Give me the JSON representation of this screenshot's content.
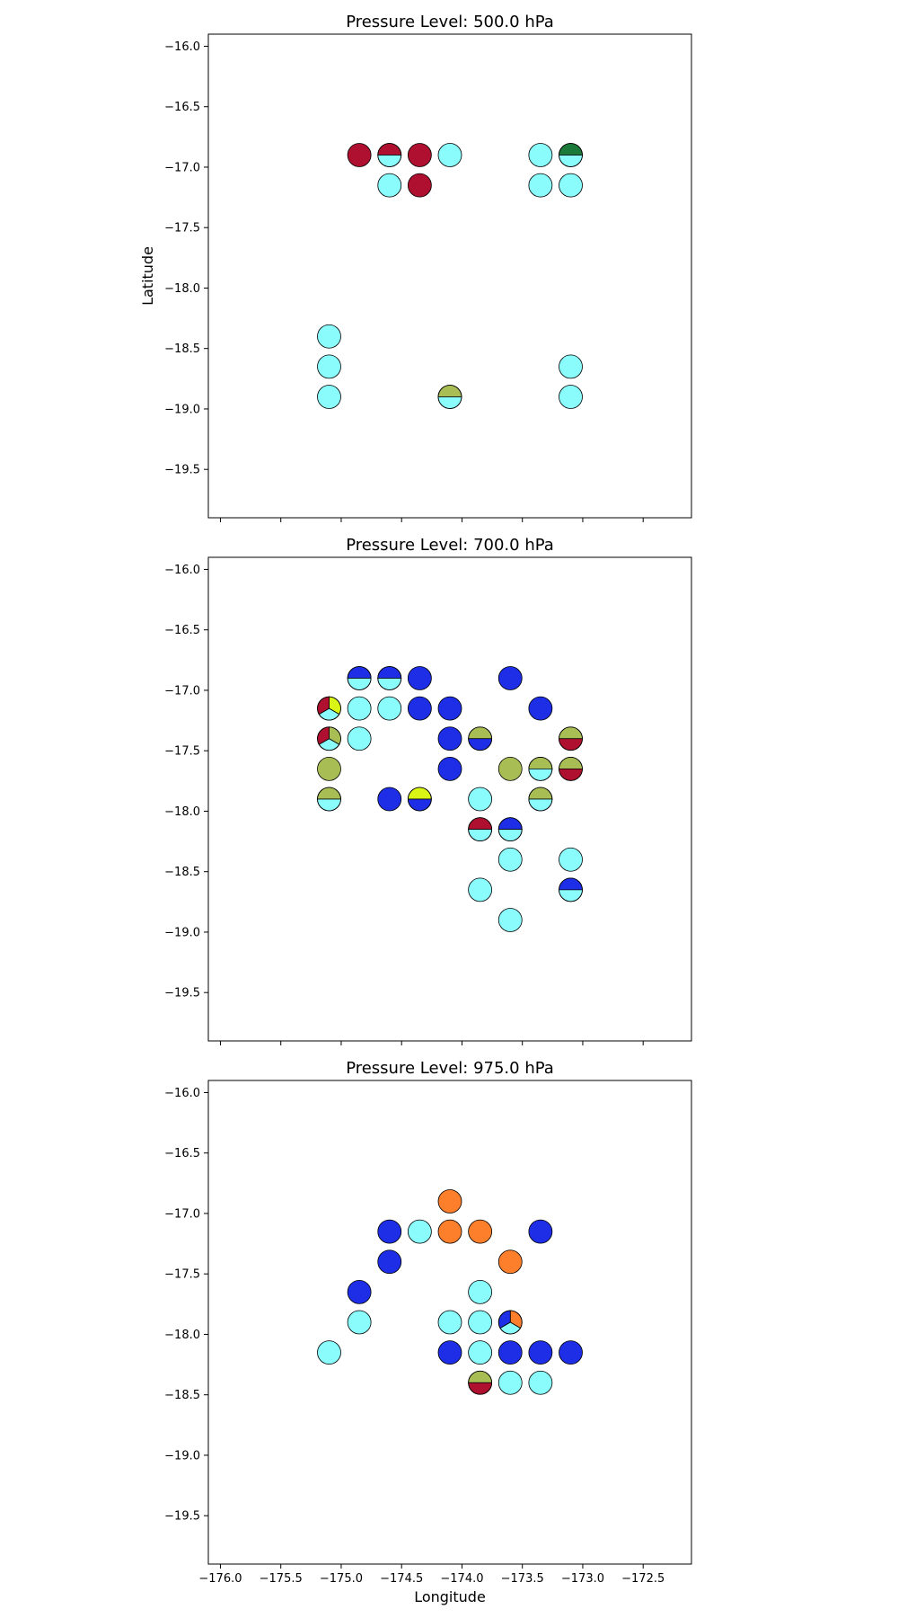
{
  "figure": {
    "ylabel": "Latitude",
    "xlabel": "Longitude"
  },
  "colors": {
    "cyan": "#8afcfc",
    "blue": "#1e2ee6",
    "crimson": "#b0102f",
    "olive": "#a8be55",
    "green": "#1b7a3a",
    "lime": "#d8f515",
    "orange": "#fd7f2b",
    "frame": "#000000",
    "background": "#ffffff"
  },
  "chart_data": [
    {
      "type": "scatter",
      "title": "Pressure Level: 500.0 hPa",
      "xlim": [
        -176.1,
        -172.1
      ],
      "ylim": [
        -19.9,
        -15.9
      ],
      "x_ticks": [
        -176.0,
        -175.5,
        -175.0,
        -174.5,
        -174.0,
        -173.5,
        -173.0,
        -172.5
      ],
      "y_ticks": [
        -16.0,
        -16.5,
        -17.0,
        -17.5,
        -18.0,
        -18.5,
        -19.0,
        -19.5
      ],
      "x_tick_labels": [],
      "y_tick_labels": [
        "−16.0",
        "−16.5",
        "−17.0",
        "−17.5",
        "−18.0",
        "−18.5",
        "−19.0",
        "−19.5"
      ],
      "ylabel": "Latitude",
      "xlabel": "",
      "grid": false,
      "points": [
        {
          "lon": -174.85,
          "lat": -16.9,
          "colors": [
            "crimson"
          ]
        },
        {
          "lon": -174.6,
          "lat": -16.9,
          "colors": [
            "crimson",
            "cyan"
          ]
        },
        {
          "lon": -174.35,
          "lat": -16.9,
          "colors": [
            "crimson"
          ]
        },
        {
          "lon": -174.1,
          "lat": -16.9,
          "colors": [
            "cyan"
          ]
        },
        {
          "lon": -173.35,
          "lat": -16.9,
          "colors": [
            "cyan"
          ]
        },
        {
          "lon": -173.1,
          "lat": -16.9,
          "colors": [
            "green",
            "cyan"
          ]
        },
        {
          "lon": -174.6,
          "lat": -17.15,
          "colors": [
            "cyan"
          ]
        },
        {
          "lon": -174.35,
          "lat": -17.15,
          "colors": [
            "crimson"
          ]
        },
        {
          "lon": -173.35,
          "lat": -17.15,
          "colors": [
            "cyan"
          ]
        },
        {
          "lon": -173.1,
          "lat": -17.15,
          "colors": [
            "cyan"
          ]
        },
        {
          "lon": -175.1,
          "lat": -18.4,
          "colors": [
            "cyan"
          ]
        },
        {
          "lon": -175.1,
          "lat": -18.65,
          "colors": [
            "cyan"
          ]
        },
        {
          "lon": -173.1,
          "lat": -18.65,
          "colors": [
            "cyan"
          ]
        },
        {
          "lon": -175.1,
          "lat": -18.9,
          "colors": [
            "cyan"
          ]
        },
        {
          "lon": -174.1,
          "lat": -18.9,
          "colors": [
            "olive",
            "cyan"
          ]
        },
        {
          "lon": -173.1,
          "lat": -18.9,
          "colors": [
            "cyan"
          ]
        }
      ]
    },
    {
      "type": "scatter",
      "title": "Pressure Level: 700.0 hPa",
      "xlim": [
        -176.1,
        -172.1
      ],
      "ylim": [
        -19.9,
        -15.9
      ],
      "x_ticks": [
        -176.0,
        -175.5,
        -175.0,
        -174.5,
        -174.0,
        -173.5,
        -173.0,
        -172.5
      ],
      "y_ticks": [
        -16.0,
        -16.5,
        -17.0,
        -17.5,
        -18.0,
        -18.5,
        -19.0,
        -19.5
      ],
      "x_tick_labels": [],
      "y_tick_labels": [
        "−16.0",
        "−16.5",
        "−17.0",
        "−17.5",
        "−18.0",
        "−18.5",
        "−19.0",
        "−19.5"
      ],
      "ylabel": "",
      "xlabel": "",
      "grid": false,
      "points": [
        {
          "lon": -174.85,
          "lat": -16.9,
          "colors": [
            "blue",
            "cyan"
          ]
        },
        {
          "lon": -174.6,
          "lat": -16.9,
          "colors": [
            "blue",
            "cyan"
          ]
        },
        {
          "lon": -174.35,
          "lat": -16.9,
          "colors": [
            "blue"
          ]
        },
        {
          "lon": -173.6,
          "lat": -16.9,
          "colors": [
            "blue"
          ]
        },
        {
          "lon": -175.1,
          "lat": -17.15,
          "colors": [
            "lime",
            "cyan",
            "crimson"
          ]
        },
        {
          "lon": -174.85,
          "lat": -17.15,
          "colors": [
            "cyan"
          ]
        },
        {
          "lon": -174.6,
          "lat": -17.15,
          "colors": [
            "cyan"
          ]
        },
        {
          "lon": -174.35,
          "lat": -17.15,
          "colors": [
            "blue"
          ]
        },
        {
          "lon": -174.1,
          "lat": -17.15,
          "colors": [
            "blue"
          ]
        },
        {
          "lon": -173.35,
          "lat": -17.15,
          "colors": [
            "blue"
          ]
        },
        {
          "lon": -175.1,
          "lat": -17.4,
          "colors": [
            "olive",
            "cyan",
            "crimson"
          ]
        },
        {
          "lon": -174.85,
          "lat": -17.4,
          "colors": [
            "cyan"
          ]
        },
        {
          "lon": -174.1,
          "lat": -17.4,
          "colors": [
            "blue"
          ]
        },
        {
          "lon": -173.85,
          "lat": -17.4,
          "colors": [
            "olive",
            "blue"
          ]
        },
        {
          "lon": -173.1,
          "lat": -17.4,
          "colors": [
            "olive",
            "crimson"
          ]
        },
        {
          "lon": -175.1,
          "lat": -17.65,
          "colors": [
            "olive"
          ]
        },
        {
          "lon": -174.1,
          "lat": -17.65,
          "colors": [
            "blue"
          ]
        },
        {
          "lon": -173.6,
          "lat": -17.65,
          "colors": [
            "olive"
          ]
        },
        {
          "lon": -173.35,
          "lat": -17.65,
          "colors": [
            "olive",
            "cyan"
          ]
        },
        {
          "lon": -173.1,
          "lat": -17.65,
          "colors": [
            "olive",
            "crimson"
          ]
        },
        {
          "lon": -175.1,
          "lat": -17.9,
          "colors": [
            "olive",
            "cyan"
          ]
        },
        {
          "lon": -174.6,
          "lat": -17.9,
          "colors": [
            "blue"
          ]
        },
        {
          "lon": -174.35,
          "lat": -17.9,
          "colors": [
            "lime",
            "blue"
          ]
        },
        {
          "lon": -173.85,
          "lat": -17.9,
          "colors": [
            "cyan"
          ]
        },
        {
          "lon": -173.35,
          "lat": -17.9,
          "colors": [
            "olive",
            "cyan"
          ]
        },
        {
          "lon": -173.85,
          "lat": -18.15,
          "colors": [
            "crimson",
            "cyan"
          ]
        },
        {
          "lon": -173.6,
          "lat": -18.15,
          "colors": [
            "blue",
            "cyan"
          ]
        },
        {
          "lon": -173.6,
          "lat": -18.4,
          "colors": [
            "cyan"
          ]
        },
        {
          "lon": -173.1,
          "lat": -18.4,
          "colors": [
            "cyan"
          ]
        },
        {
          "lon": -173.85,
          "lat": -18.65,
          "colors": [
            "cyan"
          ]
        },
        {
          "lon": -173.1,
          "lat": -18.65,
          "colors": [
            "blue",
            "cyan"
          ]
        },
        {
          "lon": -173.6,
          "lat": -18.9,
          "colors": [
            "cyan"
          ]
        }
      ]
    },
    {
      "type": "scatter",
      "title": "Pressure Level: 975.0 hPa",
      "xlim": [
        -176.1,
        -172.1
      ],
      "ylim": [
        -19.9,
        -15.9
      ],
      "x_ticks": [
        -176.0,
        -175.5,
        -175.0,
        -174.5,
        -174.0,
        -173.5,
        -173.0,
        -172.5
      ],
      "y_ticks": [
        -16.0,
        -16.5,
        -17.0,
        -17.5,
        -18.0,
        -18.5,
        -19.0,
        -19.5
      ],
      "x_tick_labels": [
        "−176.0",
        "−175.5",
        "−175.0",
        "−174.5",
        "−174.0",
        "−173.5",
        "−173.0",
        "−172.5"
      ],
      "y_tick_labels": [
        "−16.0",
        "−16.5",
        "−17.0",
        "−17.5",
        "−18.0",
        "−18.5",
        "−19.0",
        "−19.5"
      ],
      "ylabel": "",
      "xlabel": "Longitude",
      "grid": false,
      "points": [
        {
          "lon": -174.1,
          "lat": -16.9,
          "colors": [
            "orange"
          ]
        },
        {
          "lon": -174.6,
          "lat": -17.15,
          "colors": [
            "blue"
          ]
        },
        {
          "lon": -174.35,
          "lat": -17.15,
          "colors": [
            "cyan"
          ]
        },
        {
          "lon": -174.1,
          "lat": -17.15,
          "colors": [
            "orange"
          ]
        },
        {
          "lon": -173.85,
          "lat": -17.15,
          "colors": [
            "orange"
          ]
        },
        {
          "lon": -173.35,
          "lat": -17.15,
          "colors": [
            "blue"
          ]
        },
        {
          "lon": -174.6,
          "lat": -17.4,
          "colors": [
            "blue"
          ]
        },
        {
          "lon": -173.6,
          "lat": -17.4,
          "colors": [
            "orange"
          ]
        },
        {
          "lon": -174.85,
          "lat": -17.65,
          "colors": [
            "blue"
          ]
        },
        {
          "lon": -173.85,
          "lat": -17.65,
          "colors": [
            "cyan"
          ]
        },
        {
          "lon": -174.85,
          "lat": -17.9,
          "colors": [
            "cyan"
          ]
        },
        {
          "lon": -174.1,
          "lat": -17.9,
          "colors": [
            "cyan"
          ]
        },
        {
          "lon": -173.85,
          "lat": -17.9,
          "colors": [
            "cyan"
          ]
        },
        {
          "lon": -173.6,
          "lat": -17.9,
          "colors": [
            "orange",
            "cyan",
            "blue"
          ]
        },
        {
          "lon": -175.1,
          "lat": -18.15,
          "colors": [
            "cyan"
          ]
        },
        {
          "lon": -174.1,
          "lat": -18.15,
          "colors": [
            "blue"
          ]
        },
        {
          "lon": -173.85,
          "lat": -18.15,
          "colors": [
            "cyan"
          ]
        },
        {
          "lon": -173.6,
          "lat": -18.15,
          "colors": [
            "blue"
          ]
        },
        {
          "lon": -173.35,
          "lat": -18.15,
          "colors": [
            "blue"
          ]
        },
        {
          "lon": -173.1,
          "lat": -18.15,
          "colors": [
            "blue"
          ]
        },
        {
          "lon": -173.85,
          "lat": -18.4,
          "colors": [
            "olive",
            "crimson"
          ]
        },
        {
          "lon": -173.6,
          "lat": -18.4,
          "colors": [
            "cyan"
          ]
        },
        {
          "lon": -173.35,
          "lat": -18.4,
          "colors": [
            "cyan"
          ]
        }
      ]
    }
  ]
}
